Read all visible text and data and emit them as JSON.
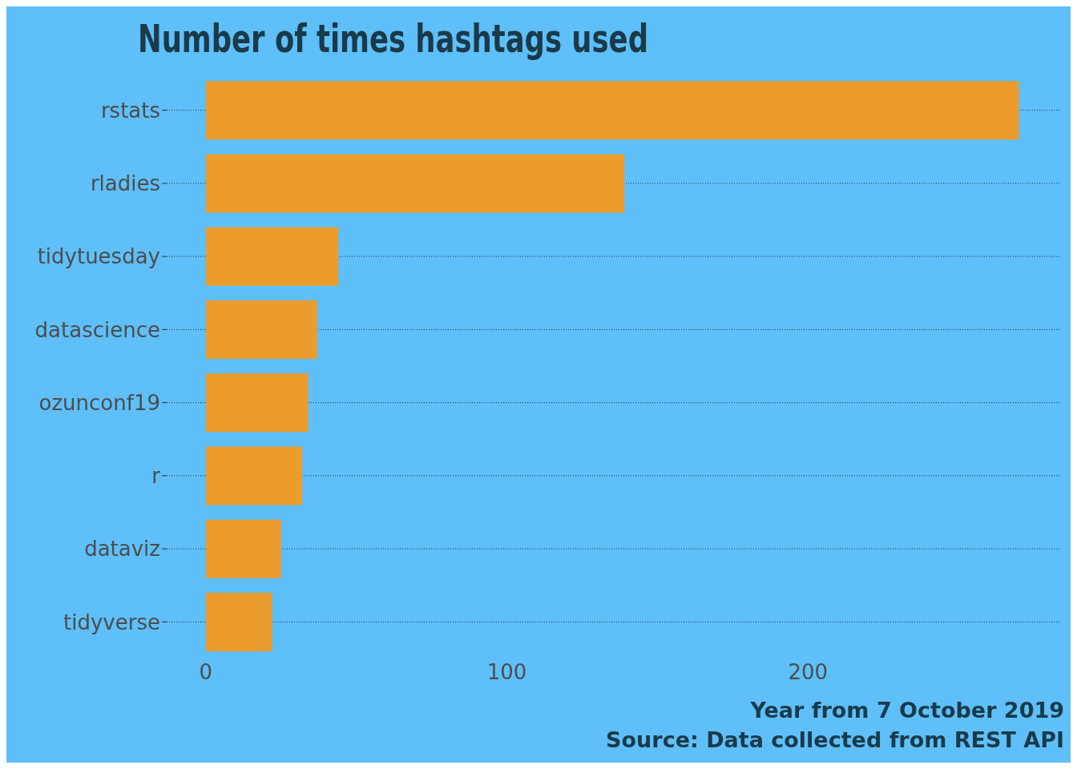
{
  "chart_data": {
    "type": "bar",
    "orientation": "horizontal",
    "title": "Number of times hashtags used",
    "categories": [
      "rstats",
      "rladies",
      "tidytuesday",
      "datascience",
      "ozunconf19",
      "r",
      "dataviz",
      "tidyverse"
    ],
    "values": [
      270,
      139,
      44,
      37,
      34,
      32,
      25,
      22
    ],
    "color": "#ec9c2c",
    "xlim": [
      -13,
      284
    ],
    "xticks": [
      0,
      100,
      200
    ],
    "grid": "y",
    "annotations": [
      "Year from 7 October 2019",
      "Source: Data collected from REST API"
    ]
  }
}
